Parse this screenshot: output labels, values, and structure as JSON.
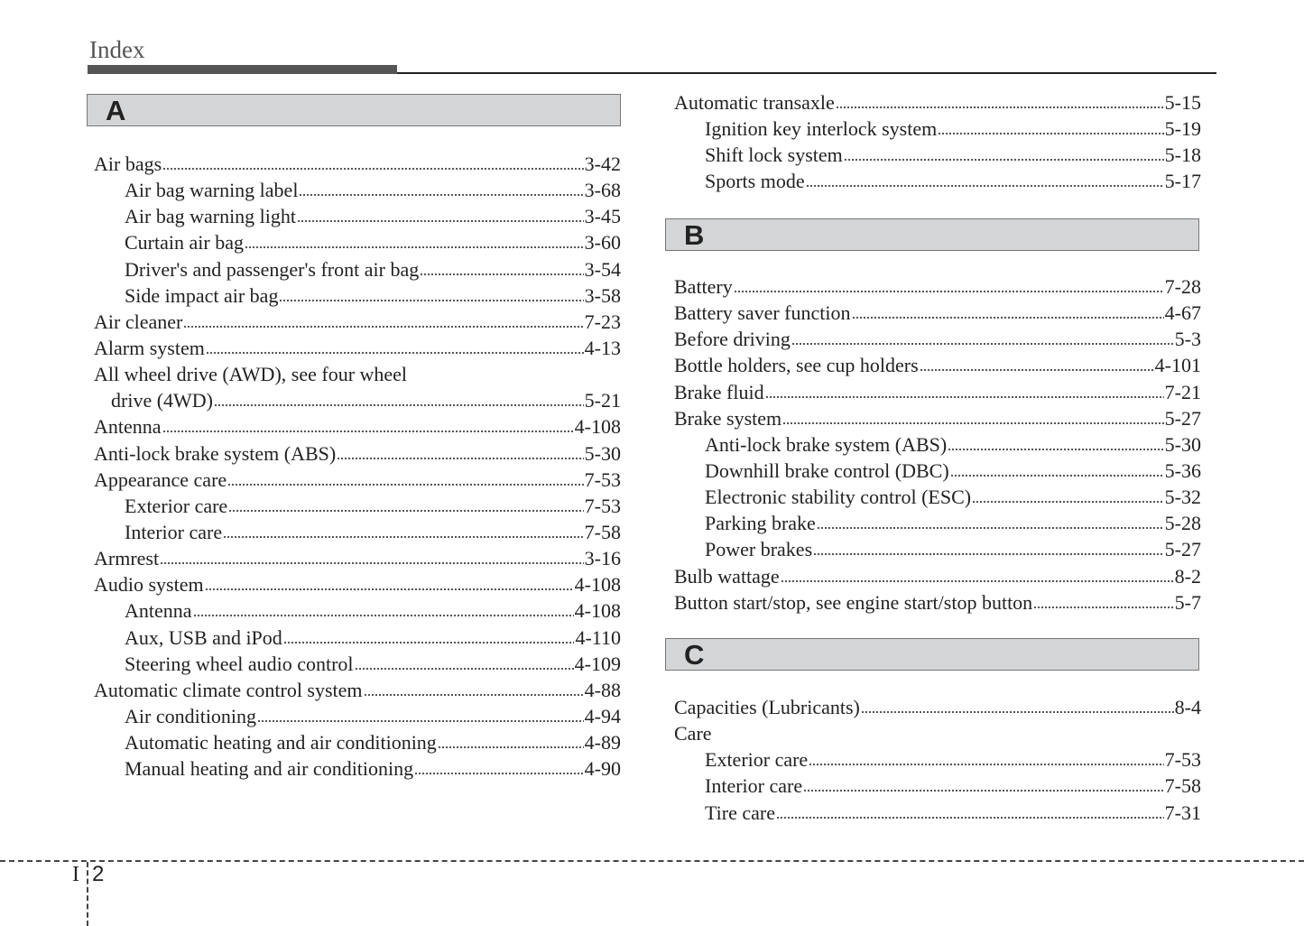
{
  "header": {
    "title": "Index"
  },
  "sections": {
    "A": {
      "letter": "A",
      "entries": [
        {
          "text": "Air bags",
          "page": "3-42",
          "level": 0
        },
        {
          "text": "Air bag warning label",
          "page": "3-68",
          "level": 1
        },
        {
          "text": "Air bag warning light",
          "page": "3-45",
          "level": 1
        },
        {
          "text": "Curtain air bag",
          "page": "3-60",
          "level": 1
        },
        {
          "text": "Driver's and passenger's front air bag",
          "page": "3-54",
          "level": 1
        },
        {
          "text": "Side impact air bag",
          "page": "3-58",
          "level": 1
        },
        {
          "text": "Air cleaner",
          "page": "7-23",
          "level": 0
        },
        {
          "text": "Alarm system",
          "page": "4-13",
          "level": 0
        },
        {
          "text": "All wheel drive (AWD), see four wheel",
          "page": "",
          "level": 0
        },
        {
          "text": "drive (4WD)",
          "page": "5-21",
          "level": 2
        },
        {
          "text": "Antenna",
          "page": "4-108",
          "level": 0
        },
        {
          "text": "Anti-lock brake system (ABS)",
          "page": "5-30",
          "level": 0
        },
        {
          "text": "Appearance care",
          "page": "7-53",
          "level": 0
        },
        {
          "text": "Exterior care",
          "page": "7-53",
          "level": 1
        },
        {
          "text": "Interior care",
          "page": "7-58",
          "level": 1
        },
        {
          "text": "Armrest",
          "page": "3-16",
          "level": 0
        },
        {
          "text": "Audio system",
          "page": "4-108",
          "level": 0
        },
        {
          "text": "Antenna",
          "page": "4-108",
          "level": 1
        },
        {
          "text": "Aux, USB and iPod",
          "page": "4-110",
          "level": 1
        },
        {
          "text": "Steering wheel audio control",
          "page": "4-109",
          "level": 1
        },
        {
          "text": "Automatic climate control system",
          "page": "4-88",
          "level": 0
        },
        {
          "text": "Air conditioning",
          "page": "4-94",
          "level": 1
        },
        {
          "text": "Automatic heating and air conditioning",
          "page": "4-89",
          "level": 1
        },
        {
          "text": "Manual heating and air conditioning",
          "page": "4-90",
          "level": 1
        }
      ]
    },
    "A_cont": {
      "entries": [
        {
          "text": "Automatic transaxle",
          "page": "5-15",
          "level": 0
        },
        {
          "text": "Ignition key interlock system",
          "page": "5-19",
          "level": 1
        },
        {
          "text": "Shift lock system",
          "page": "5-18",
          "level": 1
        },
        {
          "text": "Sports mode",
          "page": "5-17",
          "level": 1
        }
      ]
    },
    "B": {
      "letter": "B",
      "entries": [
        {
          "text": "Battery",
          "page": "7-28",
          "level": 0
        },
        {
          "text": "Battery saver function",
          "page": "4-67",
          "level": 0
        },
        {
          "text": "Before driving",
          "page": "5-3",
          "level": 0
        },
        {
          "text": "Bottle holders, see cup holders",
          "page": "4-101",
          "level": 0
        },
        {
          "text": "Brake fluid",
          "page": "7-21",
          "level": 0
        },
        {
          "text": "Brake system",
          "page": "5-27",
          "level": 0
        },
        {
          "text": "Anti-lock brake system (ABS)",
          "page": "5-30",
          "level": 1
        },
        {
          "text": "Downhill brake control (DBC)",
          "page": "5-36",
          "level": 1
        },
        {
          "text": "Electronic stability control (ESC)",
          "page": "5-32",
          "level": 1
        },
        {
          "text": "Parking brake",
          "page": "5-28",
          "level": 1
        },
        {
          "text": "Power brakes",
          "page": "5-27",
          "level": 1
        },
        {
          "text": "Bulb wattage",
          "page": "8-2",
          "level": 0
        },
        {
          "text": "Button start/stop, see engine start/stop button",
          "page": "5-7",
          "level": 0
        }
      ]
    },
    "C": {
      "letter": "C",
      "entries": [
        {
          "text": "Capacities (Lubricants)",
          "page": "8-4",
          "level": 0
        },
        {
          "text": "Care",
          "page": "",
          "level": 0
        },
        {
          "text": "Exterior care",
          "page": "7-53",
          "level": 1
        },
        {
          "text": "Interior care",
          "page": "7-58",
          "level": 1
        },
        {
          "text": "Tire care",
          "page": "7-31",
          "level": 1
        }
      ]
    }
  },
  "footer": {
    "section": "I",
    "page": "2"
  }
}
